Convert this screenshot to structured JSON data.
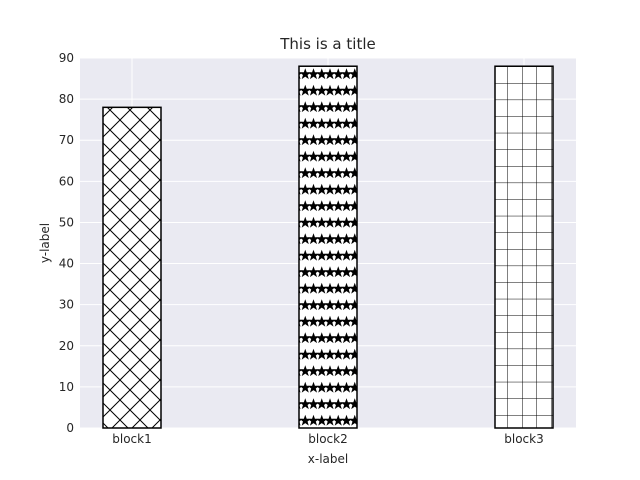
{
  "chart_data": {
    "type": "bar",
    "title": "This is a title",
    "xlabel": "x-label",
    "ylabel": "y-label",
    "categories": [
      "block1",
      "block2",
      "block3"
    ],
    "values": [
      78,
      88,
      88
    ],
    "hatches": [
      "x",
      "star",
      "grid"
    ],
    "ylim": [
      0,
      90
    ],
    "yticks": [
      0,
      10,
      20,
      30,
      40,
      50,
      60,
      70,
      80,
      90
    ],
    "grid": true,
    "colors": {
      "plot_background": "#eaeaf2",
      "grid": "#ffffff",
      "bar_fill": "#ffffff",
      "bar_edge": "#000000",
      "text": "#262626"
    }
  }
}
